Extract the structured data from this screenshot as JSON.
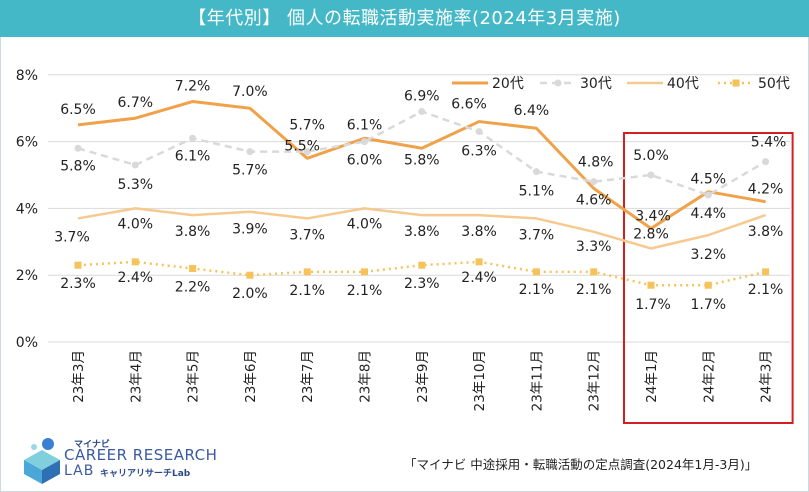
{
  "title": "【年代別】 個人の転職活動実施率(2024年3月実施)",
  "source": "「マイナビ 中途採用・転職活動の定点調査(2024年1月-3月)」",
  "logo": {
    "small": "マイナビ",
    "main": "CAREER RESEARCH",
    "lab": "LAB",
    "sub": "キャリアリサーチLab"
  },
  "colors": {
    "title_bg": "#44b8c6",
    "s20": "#f0a24a",
    "s30": "#d9d9d9",
    "s40": "#f6c98f",
    "s50": "#f5c35a",
    "highlight": "#d21f1f"
  },
  "chart_data": {
    "type": "line",
    "categories": [
      "23年3月",
      "23年4月",
      "23年5月",
      "23年6月",
      "23年7月",
      "23年8月",
      "23年9月",
      "23年10月",
      "23年11月",
      "23年12月",
      "24年1月",
      "24年2月",
      "24年3月"
    ],
    "ylim": [
      0,
      8
    ],
    "yticks": [
      "0%",
      "2%",
      "4%",
      "6%",
      "8%"
    ],
    "series": [
      {
        "name": "20代",
        "values": [
          6.5,
          6.7,
          7.2,
          7.0,
          5.5,
          6.1,
          5.8,
          6.6,
          6.4,
          4.6,
          3.4,
          4.5,
          4.2
        ],
        "labels": [
          "6.5%",
          "6.7%",
          "7.2%",
          "7.0%",
          "5.5%",
          "6.1%",
          "5.8%",
          "6.6%",
          "6.4%",
          "4.6%",
          "3.4%",
          "4.5%",
          "4.2%"
        ]
      },
      {
        "name": "30代",
        "values": [
          5.8,
          5.3,
          6.1,
          5.7,
          5.7,
          6.0,
          6.9,
          6.3,
          5.1,
          4.8,
          5.0,
          4.4,
          5.4
        ],
        "labels": [
          "5.8%",
          "5.3%",
          "6.1%",
          "5.7%",
          "5.7%",
          "6.0%",
          "6.9%",
          "6.3%",
          "5.1%",
          "4.8%",
          "5.0%",
          "4.4%",
          "5.4%"
        ]
      },
      {
        "name": "40代",
        "values": [
          3.7,
          4.0,
          3.8,
          3.9,
          3.7,
          4.0,
          3.8,
          3.8,
          3.7,
          3.3,
          2.8,
          3.2,
          3.8
        ],
        "labels": [
          "3.7%",
          "4.0%",
          "3.8%",
          "3.9%",
          "3.7%",
          "4.0%",
          "3.8%",
          "3.8%",
          "3.7%",
          "3.3%",
          "2.8%",
          "3.2%",
          "3.8%"
        ]
      },
      {
        "name": "50代",
        "values": [
          2.3,
          2.4,
          2.2,
          2.0,
          2.1,
          2.1,
          2.3,
          2.4,
          2.1,
          2.1,
          1.7,
          1.7,
          2.1
        ],
        "labels": [
          "2.3%",
          "2.4%",
          "2.2%",
          "2.0%",
          "2.1%",
          "2.1%",
          "2.3%",
          "2.4%",
          "2.1%",
          "2.1%",
          "1.7%",
          "1.7%",
          "2.1%"
        ]
      }
    ],
    "legend": "top-right",
    "highlight_categories": [
      "24年1月",
      "24年2月",
      "24年3月"
    ]
  }
}
